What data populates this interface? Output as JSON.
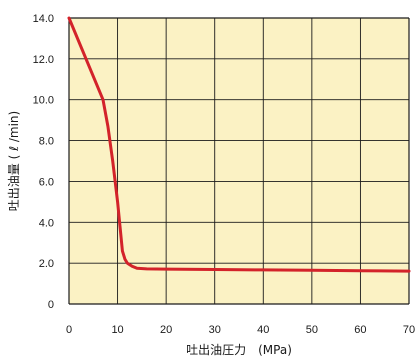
{
  "chart_data": {
    "type": "line",
    "xlabel": "吐出油圧力　(MPa)",
    "ylabel": "吐出油量 ( ℓ /min)",
    "xlim": [
      0,
      70
    ],
    "ylim": [
      0,
      14
    ],
    "x_ticks": [
      0,
      10,
      20,
      30,
      40,
      50,
      60,
      70
    ],
    "y_ticks": [
      0,
      2,
      4,
      6,
      8,
      10,
      12,
      14
    ],
    "x_tick_labels": [
      "0",
      "10",
      "20",
      "30",
      "40",
      "50",
      "60",
      "70"
    ],
    "y_tick_labels": [
      "0",
      "2.0",
      "4.0",
      "6.0",
      "8.0",
      "10.0",
      "12.0",
      "14.0"
    ],
    "grid": true,
    "series": [
      {
        "x": [
          0,
          7,
          8,
          9,
          10,
          10.5,
          11,
          11.5,
          12,
          13,
          14,
          16,
          20,
          30,
          40,
          50,
          60,
          70
        ],
        "y": [
          14.0,
          10.0,
          8.7,
          7.0,
          5.0,
          3.8,
          2.6,
          2.2,
          2.0,
          1.85,
          1.75,
          1.72,
          1.71,
          1.69,
          1.67,
          1.65,
          1.63,
          1.61
        ]
      }
    ],
    "colors": {
      "background": "#fbf2c4",
      "grid": "#1a1a1a",
      "line": "#d3232a"
    }
  }
}
